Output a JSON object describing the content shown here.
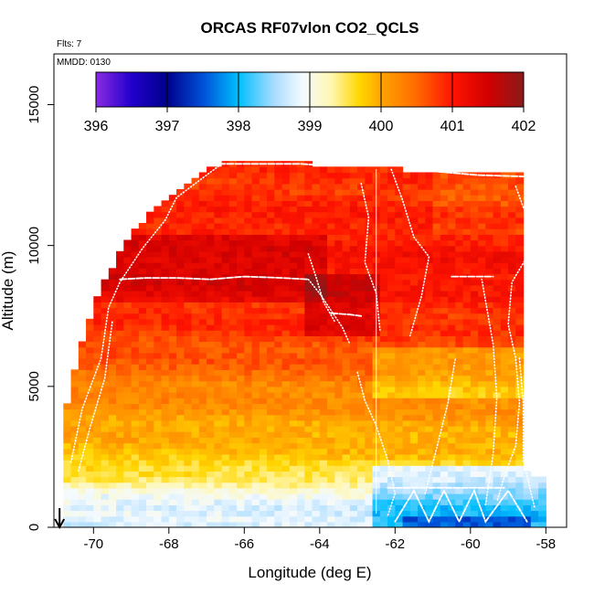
{
  "chart_data": {
    "type": "heatmap",
    "title": "ORCAS RF07vlon CO2_QCLS",
    "xlabel": "Longitude (deg E)",
    "ylabel": "Altitude (m)",
    "xlim": [
      -71.05,
      -57.45
    ],
    "ylim": [
      0,
      16800
    ],
    "x_ticks": [
      -70,
      -68,
      -66,
      -64,
      -62,
      -60,
      -58
    ],
    "x_tick_labels": [
      "-70",
      "-68",
      "-66",
      "-64",
      "-62",
      "-60",
      "-58"
    ],
    "y_ticks": [
      0,
      5000,
      10000,
      15000
    ],
    "y_tick_labels": [
      "0",
      "5000",
      "10000",
      "15000"
    ],
    "annotations": {
      "flights": "Flts: 7",
      "date": "MMDD: 0130"
    },
    "arrow_longitude": -70.9,
    "colorbar": {
      "min": 396,
      "max": 402,
      "ticks": [
        396,
        397,
        398,
        399,
        400,
        401,
        402
      ],
      "tick_labels": [
        "396",
        "397",
        "398",
        "399",
        "400",
        "401",
        "402"
      ],
      "stops": [
        {
          "value": 396.0,
          "color": "#8a2be2"
        },
        {
          "value": 396.5,
          "color": "#2200cc"
        },
        {
          "value": 397.0,
          "color": "#00008b"
        },
        {
          "value": 397.5,
          "color": "#0050d8"
        },
        {
          "value": 398.0,
          "color": "#00bfff"
        },
        {
          "value": 398.5,
          "color": "#aadcff"
        },
        {
          "value": 398.9,
          "color": "#f4faff"
        },
        {
          "value": 399.3,
          "color": "#fff7b0"
        },
        {
          "value": 399.7,
          "color": "#ffd700"
        },
        {
          "value": 400.0,
          "color": "#ffa500"
        },
        {
          "value": 400.5,
          "color": "#ff6a00"
        },
        {
          "value": 401.0,
          "color": "#ff1400"
        },
        {
          "value": 401.5,
          "color": "#d10000"
        },
        {
          "value": 402.0,
          "color": "#8b1a1a"
        }
      ]
    },
    "field": {
      "x_range": [
        -70.8,
        -58.0
      ],
      "y_range": [
        0,
        13000
      ],
      "cell_lon": 0.2,
      "cell_alt": 200,
      "left_edge": [
        {
          "alt": 0,
          "lon": -70.8
        },
        {
          "alt": 3700,
          "lon": -70.8
        },
        {
          "alt": 5000,
          "lon": -70.6
        },
        {
          "alt": 7500,
          "lon": -70.1
        },
        {
          "alt": 8800,
          "lon": -69.7
        },
        {
          "alt": 10200,
          "lon": -69.1
        },
        {
          "alt": 11300,
          "lon": -68.4
        },
        {
          "alt": 12400,
          "lon": -67.4
        },
        {
          "alt": 12800,
          "lon": -66.9
        },
        {
          "alt": 13000,
          "lon": -66.2
        }
      ],
      "right_edge": [
        {
          "alt": 0,
          "lon": -58.0
        },
        {
          "alt": 1700,
          "lon": -58.0
        },
        {
          "alt": 2000,
          "lon": -58.5
        },
        {
          "alt": 12500,
          "lon": -58.5
        }
      ],
      "top_edge": [
        {
          "lon": -71.0,
          "alt": 13000
        },
        {
          "lon": -64.3,
          "alt": 13000
        },
        {
          "lon": -64.2,
          "alt": 12800
        },
        {
          "lon": -62.1,
          "alt": 12800
        },
        {
          "lon": -61.2,
          "alt": 12500
        },
        {
          "lon": -58.0,
          "alt": 12500
        }
      ],
      "vertical_profile": [
        {
          "alt": 0,
          "value": 398.7
        },
        {
          "alt": 700,
          "value": 398.8
        },
        {
          "alt": 1300,
          "value": 399.1
        },
        {
          "alt": 1800,
          "value": 399.5
        },
        {
          "alt": 2500,
          "value": 399.8
        },
        {
          "alt": 3200,
          "value": 399.95
        },
        {
          "alt": 4000,
          "value": 400.1
        },
        {
          "alt": 5000,
          "value": 400.3
        },
        {
          "alt": 6000,
          "value": 400.6
        },
        {
          "alt": 7000,
          "value": 400.8
        },
        {
          "alt": 8200,
          "value": 400.95
        },
        {
          "alt": 9000,
          "value": 401.1
        },
        {
          "alt": 10000,
          "value": 401.0
        },
        {
          "alt": 11000,
          "value": 400.95
        },
        {
          "alt": 12000,
          "value": 400.85
        },
        {
          "alt": 13000,
          "value": 400.8
        }
      ],
      "anomalies": [
        {
          "lon0": -71.0,
          "lon1": -63.7,
          "alt0": 8100,
          "alt1": 10300,
          "delta": 0.35
        },
        {
          "lon0": -64.3,
          "lon1": -62.4,
          "alt0": 6900,
          "alt1": 9000,
          "delta": 0.5
        },
        {
          "lon0": -62.5,
          "lon1": -58.0,
          "alt0": 4600,
          "alt1": 6400,
          "delta": -0.45
        },
        {
          "lon0": -62.5,
          "lon1": -58.0,
          "alt0": 0,
          "alt1": 2200,
          "delta": -0.7
        },
        {
          "lon0": -61.8,
          "lon1": -58.4,
          "alt0": 0,
          "alt1": 450,
          "delta": -0.5
        },
        {
          "lon0": -61.0,
          "lon1": -58.0,
          "alt0": 10500,
          "alt1": 12500,
          "delta": -0.2
        }
      ]
    },
    "flight_tracks": [
      {
        "style": "dotted",
        "points": [
          [
            -70.6,
            2300
          ],
          [
            -70.3,
            4200
          ],
          [
            -69.8,
            6000
          ],
          [
            -69.6,
            7800
          ],
          [
            -69.3,
            8700
          ],
          [
            -68.7,
            9900
          ],
          [
            -68.1,
            10900
          ],
          [
            -67.8,
            11700
          ],
          [
            -67.1,
            12400
          ],
          [
            -66.6,
            12900
          ]
        ]
      },
      {
        "style": "dotted",
        "points": [
          [
            -70.4,
            2000
          ],
          [
            -70.1,
            3500
          ],
          [
            -69.7,
            5300
          ],
          [
            -69.5,
            7300
          ]
        ]
      },
      {
        "style": "dashed",
        "points": [
          [
            -69.3,
            8800
          ],
          [
            -68.6,
            8850
          ],
          [
            -67.8,
            8850
          ],
          [
            -66.9,
            8800
          ],
          [
            -66.0,
            8900
          ],
          [
            -65.0,
            8850
          ],
          [
            -64.3,
            8800
          ]
        ]
      },
      {
        "style": "dashed",
        "points": [
          [
            -66.9,
            12900
          ],
          [
            -65.6,
            12900
          ],
          [
            -64.5,
            12900
          ],
          [
            -64.0,
            12850
          ]
        ]
      },
      {
        "style": "dotted",
        "points": [
          [
            -64.3,
            8800
          ],
          [
            -64.0,
            8300
          ],
          [
            -63.7,
            7700
          ],
          [
            -63.4,
            7100
          ],
          [
            -63.2,
            6500
          ]
        ]
      },
      {
        "style": "dotted",
        "points": [
          [
            -64.3,
            9700
          ],
          [
            -64.1,
            8900
          ],
          [
            -63.9,
            8000
          ],
          [
            -63.6,
            7300
          ]
        ]
      },
      {
        "style": "dashed",
        "points": [
          [
            -63.7,
            7600
          ],
          [
            -63.2,
            7550
          ],
          [
            -62.9,
            7500
          ]
        ]
      },
      {
        "style": "solid",
        "points": [
          [
            -62.5,
            12700
          ],
          [
            -62.5,
            8000
          ],
          [
            -62.5,
            4000
          ],
          [
            -62.5,
            500
          ]
        ]
      },
      {
        "style": "dotted",
        "points": [
          [
            -62.9,
            12200
          ],
          [
            -62.7,
            11000
          ],
          [
            -62.8,
            9400
          ],
          [
            -62.5,
            8300
          ],
          [
            -62.4,
            7000
          ]
        ]
      },
      {
        "style": "dotted",
        "points": [
          [
            -62.1,
            12700
          ],
          [
            -61.8,
            11600
          ],
          [
            -61.5,
            10300
          ],
          [
            -61.1,
            9600
          ],
          [
            -61.3,
            8200
          ],
          [
            -61.6,
            6800
          ]
        ]
      },
      {
        "style": "dotted",
        "points": [
          [
            -63.0,
            5500
          ],
          [
            -62.8,
            4500
          ],
          [
            -62.5,
            3600
          ],
          [
            -62.2,
            2400
          ],
          [
            -62.0,
            1200
          ],
          [
            -62.2,
            400
          ]
        ]
      },
      {
        "style": "dotted",
        "points": [
          [
            -61.2,
            1200
          ],
          [
            -60.9,
            2800
          ],
          [
            -60.6,
            4400
          ],
          [
            -60.4,
            6000
          ]
        ]
      },
      {
        "style": "dotted",
        "points": [
          [
            -59.6,
            800
          ],
          [
            -59.4,
            2600
          ],
          [
            -59.3,
            4600
          ],
          [
            -59.4,
            6500
          ],
          [
            -59.7,
            8800
          ]
        ]
      },
      {
        "style": "dotted",
        "points": [
          [
            -58.8,
            12100
          ],
          [
            -58.5,
            11000
          ],
          [
            -58.5,
            9600
          ],
          [
            -58.9,
            8700
          ],
          [
            -59.0,
            7200
          ],
          [
            -58.8,
            6000
          ],
          [
            -58.7,
            4400
          ],
          [
            -58.8,
            2900
          ],
          [
            -59.1,
            1800
          ],
          [
            -59.3,
            900
          ]
        ]
      },
      {
        "style": "dotted",
        "points": [
          [
            -58.7,
            6000
          ],
          [
            -58.6,
            4400
          ],
          [
            -58.6,
            2400
          ],
          [
            -58.3,
            700
          ]
        ]
      },
      {
        "style": "dashed",
        "points": [
          [
            -61.1,
            12650
          ],
          [
            -59.8,
            12500
          ],
          [
            -58.6,
            12450
          ]
        ]
      },
      {
        "style": "dashed",
        "points": [
          [
            -60.5,
            8900
          ],
          [
            -59.7,
            8900
          ],
          [
            -59.4,
            8900
          ]
        ]
      },
      {
        "style": "dashed",
        "points": [
          [
            -62.2,
            1400
          ],
          [
            -61.2,
            1400
          ],
          [
            -60.2,
            1400
          ],
          [
            -59.1,
            1400
          ]
        ]
      },
      {
        "style": "dashed",
        "points": [
          [
            -62.0,
            200
          ],
          [
            -61.5,
            1300
          ],
          [
            -61.1,
            200
          ],
          [
            -60.7,
            1300
          ],
          [
            -60.3,
            200
          ],
          [
            -59.9,
            1300
          ],
          [
            -59.6,
            200
          ],
          [
            -59.0,
            1300
          ],
          [
            -58.5,
            200
          ]
        ]
      }
    ]
  }
}
